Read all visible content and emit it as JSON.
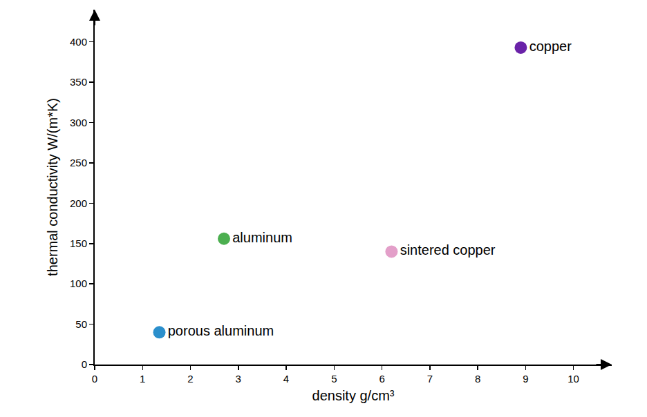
{
  "chart_data": {
    "type": "scatter",
    "xlabel": "density g/cm³",
    "ylabel": "thermal conductivity W/(m*K)",
    "x": [
      1.35,
      2.7,
      6.2,
      8.9
    ],
    "values": [
      40,
      156,
      140,
      393
    ],
    "point_labels": [
      "porous aluminum",
      "aluminum",
      "sintered copper",
      "copper"
    ],
    "colors": [
      "#2b8fcc",
      "#4caf50",
      "#e39fc9",
      "#6a22a8"
    ],
    "marker": "circle",
    "xlim": [
      0,
      10.8
    ],
    "xticks": [
      0,
      1,
      2,
      3,
      4,
      5,
      6,
      7,
      8,
      9,
      10
    ],
    "ylim": [
      0,
      440
    ],
    "yticks": [
      0,
      50,
      100,
      150,
      200,
      250,
      300,
      350,
      400
    ],
    "grid": false
  }
}
